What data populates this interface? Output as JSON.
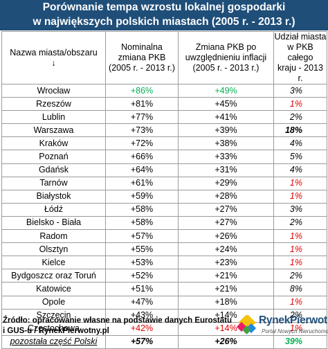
{
  "title": {
    "line1": "Porównanie tempa wzrostu lokalnej gospodarki",
    "line2": "w największych polskich miastach (2005 r. - 2013 r.)"
  },
  "headers": [
    {
      "line1": "Nazwa miasta/obszaru",
      "line2": "↓",
      "line3": ""
    },
    {
      "line1": "Nominalna",
      "line2": "zmiana PKB",
      "line3": "(2005 r. - 2013 r.)"
    },
    {
      "line1": "Zmiana PKB po",
      "line2": "uwzględnieniu inflacji",
      "line3": "(2005 r. - 2013 r.)"
    },
    {
      "line1": "Udział miasta",
      "line2": "w PKB całego",
      "line3": "kraju - 2013 r."
    }
  ],
  "rows": [
    {
      "city": "Wrocław",
      "nominal": "+86%",
      "real": "+49%",
      "share": "3%",
      "nominal_color": "green",
      "real_color": "green",
      "share_color": "black",
      "share_bold": false
    },
    {
      "city": "Rzeszów",
      "nominal": "+81%",
      "real": "+45%",
      "share": "1%",
      "nominal_color": "black",
      "real_color": "black",
      "share_color": "red",
      "share_bold": false
    },
    {
      "city": "Lublin",
      "nominal": "+77%",
      "real": "+41%",
      "share": "2%",
      "nominal_color": "black",
      "real_color": "black",
      "share_color": "black",
      "share_bold": false
    },
    {
      "city": "Warszawa",
      "nominal": "+73%",
      "real": "+39%",
      "share": "18%",
      "nominal_color": "black",
      "real_color": "black",
      "share_color": "black",
      "share_bold": true
    },
    {
      "city": "Kraków",
      "nominal": "+72%",
      "real": "+38%",
      "share": "4%",
      "nominal_color": "black",
      "real_color": "black",
      "share_color": "black",
      "share_bold": false
    },
    {
      "city": "Poznań",
      "nominal": "+66%",
      "real": "+33%",
      "share": "5%",
      "nominal_color": "black",
      "real_color": "black",
      "share_color": "black",
      "share_bold": false
    },
    {
      "city": "Gdańsk",
      "nominal": "+64%",
      "real": "+31%",
      "share": "4%",
      "nominal_color": "black",
      "real_color": "black",
      "share_color": "black",
      "share_bold": false
    },
    {
      "city": "Tarnów",
      "nominal": "+61%",
      "real": "+29%",
      "share": "1%",
      "nominal_color": "black",
      "real_color": "black",
      "share_color": "red",
      "share_bold": false
    },
    {
      "city": "Białystok",
      "nominal": "+59%",
      "real": "+28%",
      "share": "1%",
      "nominal_color": "black",
      "real_color": "black",
      "share_color": "red",
      "share_bold": false
    },
    {
      "city": "Łódź",
      "nominal": "+58%",
      "real": "+27%",
      "share": "3%",
      "nominal_color": "black",
      "real_color": "black",
      "share_color": "black",
      "share_bold": false
    },
    {
      "city": "Bielsko - Biała",
      "nominal": "+58%",
      "real": "+27%",
      "share": "2%",
      "nominal_color": "black",
      "real_color": "black",
      "share_color": "black",
      "share_bold": false
    },
    {
      "city": "Radom",
      "nominal": "+57%",
      "real": "+26%",
      "share": "1%",
      "nominal_color": "black",
      "real_color": "black",
      "share_color": "red",
      "share_bold": false
    },
    {
      "city": "Olsztyn",
      "nominal": "+55%",
      "real": "+24%",
      "share": "1%",
      "nominal_color": "black",
      "real_color": "black",
      "share_color": "red",
      "share_bold": false
    },
    {
      "city": "Kielce",
      "nominal": "+53%",
      "real": "+23%",
      "share": "1%",
      "nominal_color": "black",
      "real_color": "black",
      "share_color": "red",
      "share_bold": false
    },
    {
      "city": "Bydgoszcz oraz Toruń",
      "nominal": "+52%",
      "real": "+21%",
      "share": "2%",
      "nominal_color": "black",
      "real_color": "black",
      "share_color": "black",
      "share_bold": false
    },
    {
      "city": "Katowice",
      "nominal": "+51%",
      "real": "+21%",
      "share": "8%",
      "nominal_color": "black",
      "real_color": "black",
      "share_color": "black",
      "share_bold": false
    },
    {
      "city": "Opole",
      "nominal": "+47%",
      "real": "+18%",
      "share": "1%",
      "nominal_color": "black",
      "real_color": "black",
      "share_color": "red",
      "share_bold": false
    },
    {
      "city": "Szczecin",
      "nominal": "+43%",
      "real": "+14%",
      "share": "2%",
      "nominal_color": "black",
      "real_color": "black",
      "share_color": "black",
      "share_bold": false
    },
    {
      "city": "Częstochowa",
      "nominal": "+42%",
      "real": "+14%",
      "share": "1%",
      "nominal_color": "red",
      "real_color": "red",
      "share_color": "red",
      "share_bold": false
    }
  ],
  "total": {
    "city": "pozostała część Polski",
    "nominal": "+57%",
    "real": "+26%",
    "share": "39%",
    "share_color": "green"
  },
  "source": {
    "line1": "Źródło: opracowanie własne na podstawie danych Eurostatu",
    "line2": "i GUS-u / RynekPierwotny.pl"
  },
  "logo": {
    "name": "RynekPierwotny",
    "tagline": "Portal Nowych Nieruchomości"
  },
  "colors": {
    "header_bg": "#1f4e79",
    "green": "#00b050",
    "red": "#e00000"
  }
}
